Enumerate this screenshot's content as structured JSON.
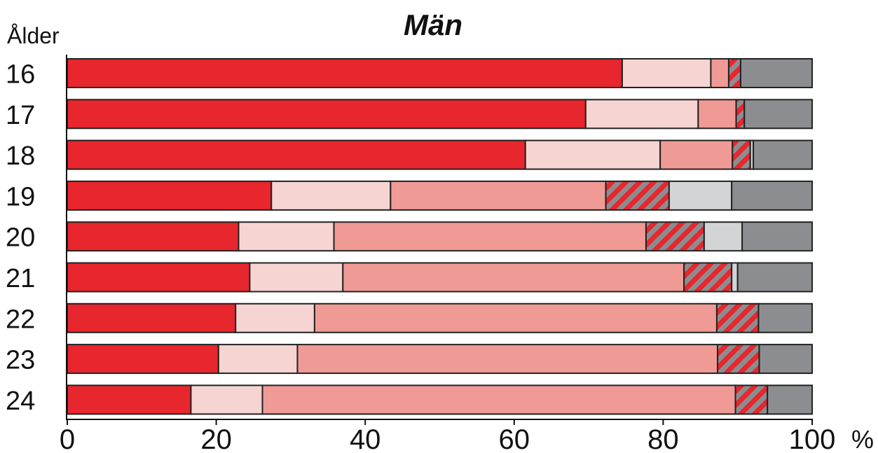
{
  "chart_data": {
    "type": "bar",
    "orientation": "horizontal",
    "stacked": true,
    "title": "Män",
    "ylabel": "Ålder",
    "xlabel": "",
    "x_unit": "%",
    "xlim": [
      0,
      100
    ],
    "xticks": [
      "0",
      "20",
      "40",
      "60",
      "80",
      "100"
    ],
    "categories": [
      "16",
      "17",
      "18",
      "19",
      "20",
      "21",
      "22",
      "23",
      "24"
    ],
    "segment_colors": [
      "#e8262d",
      "#f5d4d2",
      "#f09a95",
      "hatch",
      "#d3d4d6",
      "#8c8d90"
    ],
    "hatch_colors": {
      "a": "#e8262d",
      "b": "#8c8d90"
    },
    "series": [
      {
        "values": [
          74.5,
          69.6,
          61.5,
          27.4,
          23.0,
          24.5,
          22.6,
          20.3,
          16.6
        ]
      },
      {
        "values": [
          11.9,
          15.1,
          18.1,
          16.0,
          12.8,
          12.5,
          10.6,
          10.6,
          9.6
        ]
      },
      {
        "values": [
          2.4,
          5.1,
          9.7,
          28.9,
          41.9,
          45.8,
          54.0,
          56.4,
          63.5
        ]
      },
      {
        "values": [
          1.6,
          1.1,
          2.4,
          8.5,
          7.8,
          6.4,
          5.6,
          5.6,
          4.3
        ]
      },
      {
        "values": [
          0,
          0,
          0.4,
          8.4,
          5.1,
          0.8,
          0,
          0,
          0
        ]
      },
      {
        "values": [
          9.6,
          9.1,
          7.9,
          10.8,
          9.4,
          10.0,
          7.2,
          7.1,
          6.0
        ]
      }
    ]
  }
}
